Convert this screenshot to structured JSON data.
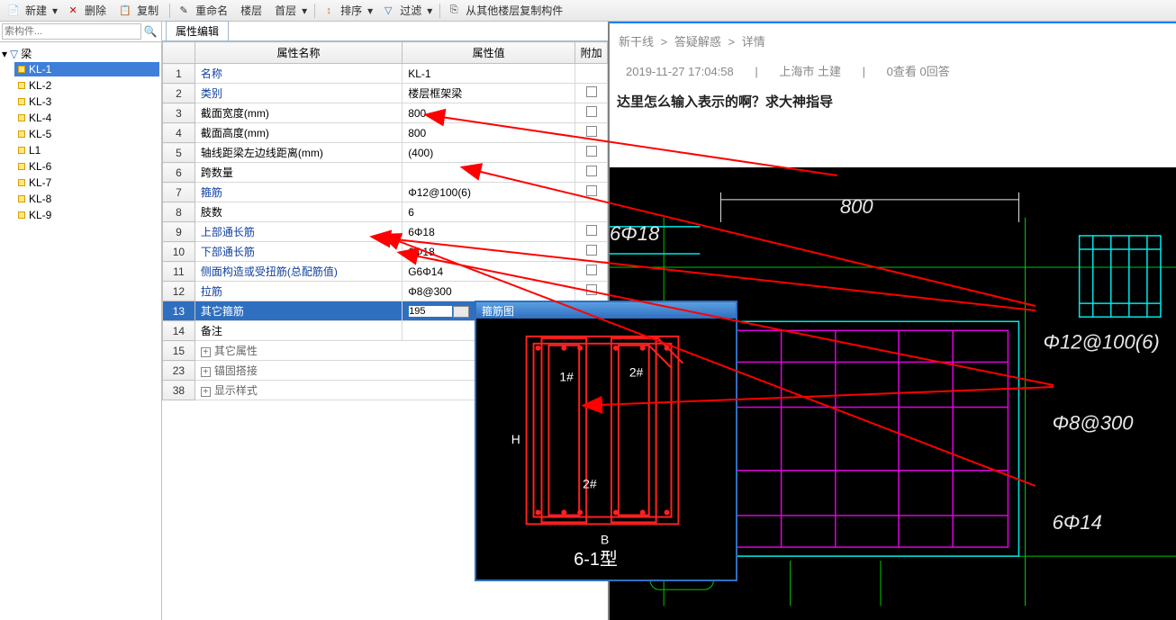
{
  "toolbar": {
    "new": "新建",
    "delete": "删除",
    "copy": "复制",
    "rename": "重命名",
    "floor_label": "楼层",
    "floor_value": "首层",
    "sort": "排序",
    "filter": "过滤",
    "copy_from": "从其他楼层复制构件"
  },
  "search": {
    "placeholder": "索构件...",
    "icon": "🔍"
  },
  "tree": {
    "root_icon": "▸",
    "funnel_icon": "▿",
    "root_label": "梁",
    "items": [
      {
        "label": "KL-1",
        "selected": true
      },
      {
        "label": "KL-2"
      },
      {
        "label": "KL-3"
      },
      {
        "label": "KL-4"
      },
      {
        "label": "KL-5"
      },
      {
        "label": "L1"
      },
      {
        "label": "KL-6"
      },
      {
        "label": "KL-7"
      },
      {
        "label": "KL-8"
      },
      {
        "label": "KL-9"
      }
    ]
  },
  "property_tab": "属性编辑",
  "property_headers": {
    "name": "属性名称",
    "value": "属性值",
    "add": "附加"
  },
  "properties": [
    {
      "num": "1",
      "name": "名称",
      "value": "KL-1"
    },
    {
      "num": "2",
      "name": "类别",
      "value": "楼层框架梁",
      "cb": true
    },
    {
      "num": "3",
      "name": "截面宽度(mm)",
      "value": "800",
      "black": true,
      "cb": true
    },
    {
      "num": "4",
      "name": "截面高度(mm)",
      "value": "800",
      "black": true,
      "cb": true
    },
    {
      "num": "5",
      "name": "轴线距梁左边线距离(mm)",
      "value": "(400)",
      "black": true,
      "cb": true
    },
    {
      "num": "6",
      "name": "跨数量",
      "value": "",
      "black": true,
      "cb": true
    },
    {
      "num": "7",
      "name": "箍筋",
      "value": "Φ12@100(6)",
      "cb": true
    },
    {
      "num": "8",
      "name": "肢数",
      "value": "6",
      "black": true
    },
    {
      "num": "9",
      "name": "上部通长筋",
      "value": "6Φ18",
      "cb": true
    },
    {
      "num": "10",
      "name": "下部通长筋",
      "value": "6Φ18",
      "cb": true
    },
    {
      "num": "11",
      "name": "侧面构造或受扭筋(总配筋值)",
      "value": "G6Φ14",
      "cb": true
    },
    {
      "num": "12",
      "name": "拉筋",
      "value": "Φ8@300",
      "cb": true
    },
    {
      "num": "13",
      "name": "其它箍筋",
      "value": "195",
      "selected": true,
      "dots": true
    },
    {
      "num": "14",
      "name": "备注",
      "value": "",
      "black": true,
      "cb": true
    },
    {
      "num": "15",
      "name": "其它属性",
      "expand": true
    },
    {
      "num": "23",
      "name": "锚固搭接",
      "expand": true
    },
    {
      "num": "38",
      "name": "显示样式",
      "expand": true
    }
  ],
  "popup": {
    "title": "箍筋图",
    "label1": "1#",
    "label2a": "2#",
    "label2b": "2#",
    "B": "B",
    "H": "H",
    "caption": "6-1型"
  },
  "breadcrumb": {
    "a": "新干线",
    "b": "答疑解惑",
    "c": "详情",
    "sep": ">"
  },
  "meta": {
    "time": "2019-11-27 17:04:58",
    "loc": "上海市  土建",
    "stats": "0查看  0回答",
    "sep": "|"
  },
  "question": "达里怎么输入表示的啊？求大神指导",
  "cad": {
    "bg": "#000000",
    "cyan": "#00e8e8",
    "magenta": "#e000e0",
    "green": "#00c800",
    "white": "#e8e8e8",
    "labels": {
      "w": "800",
      "top": "6Φ18",
      "st": "Φ12@100(6)",
      "tie": "Φ8@300",
      "side": "6Φ14"
    }
  },
  "arrows": {
    "color": "#ff0000",
    "stroke": 2
  }
}
